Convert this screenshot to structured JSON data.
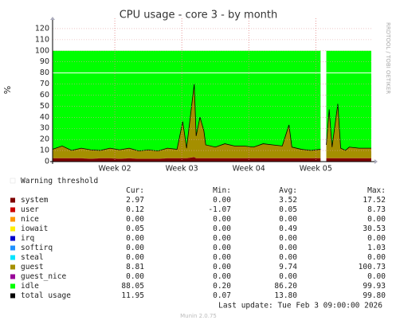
{
  "chart_data": {
    "type": "area",
    "stacked": true,
    "title": "CPU usage - core 3 - by month",
    "y_label": "%",
    "side_note": "RRDTOOL / TOBI OETIKER",
    "x": [
      0,
      1,
      2,
      3,
      4,
      5,
      6,
      7,
      8,
      9,
      10,
      11,
      12,
      13,
      13.6,
      14,
      14.8,
      15,
      15.4,
      15.8,
      16,
      17,
      18,
      19,
      20,
      21,
      22,
      23,
      24,
      24.7,
      25,
      26,
      27,
      28,
      28.3,
      28.6,
      28.9,
      29.2,
      29.8,
      30.1,
      30.6,
      31,
      32,
      33.3
    ],
    "xlim": [
      0,
      33.3
    ],
    "xticks": [
      {
        "value": 6.5,
        "label": "Week 02"
      },
      {
        "value": 13.5,
        "label": "Week 03"
      },
      {
        "value": 20.5,
        "label": "Week 04"
      },
      {
        "value": 27.5,
        "label": "Week 05"
      }
    ],
    "ylim": [
      0,
      125
    ],
    "yticks": [
      0,
      10,
      20,
      30,
      40,
      50,
      60,
      70,
      80,
      90,
      100,
      110,
      120
    ],
    "grid": true,
    "warning_threshold": {
      "name": "Warning threshold",
      "value": 80
    },
    "series": [
      {
        "name": "system",
        "color": "#7e0000",
        "values": [
          3,
          3,
          3,
          3,
          2.5,
          3,
          3,
          2.5,
          3,
          2.5,
          2.5,
          2.5,
          3,
          3,
          3,
          3,
          4,
          3,
          3,
          3,
          3,
          3,
          3,
          3,
          3,
          3,
          3,
          3,
          3,
          3,
          3,
          3,
          3,
          3,
          null,
          3,
          3,
          3,
          3,
          3,
          3,
          3,
          3,
          3
        ]
      },
      {
        "name": "user",
        "color": "#cc0000",
        "values": [
          0.1,
          0.1,
          0.1,
          0.1,
          0.1,
          0.1,
          0.1,
          0.1,
          0.1,
          0.1,
          0.1,
          0.1,
          0.1,
          0.1,
          0.1,
          0.1,
          0.1,
          0.1,
          0.1,
          0.1,
          0.1,
          0.1,
          0.1,
          0.1,
          0.1,
          0.1,
          0.1,
          0.1,
          0.1,
          0.1,
          0.1,
          0.1,
          0.1,
          0.1,
          null,
          0.1,
          0.1,
          0.1,
          0.1,
          0.1,
          0.1,
          0.1,
          0.1,
          0.1
        ]
      },
      {
        "name": "nice",
        "color": "#ff9900",
        "values": [
          0,
          0,
          0,
          0,
          0,
          0,
          0,
          0,
          0,
          0,
          0,
          0,
          0,
          0,
          0,
          0,
          0,
          0,
          0,
          0,
          0,
          0,
          0,
          0,
          0,
          0,
          0,
          0,
          0,
          0,
          0,
          0,
          0,
          0,
          null,
          0,
          0,
          0,
          0,
          0,
          0,
          0,
          0,
          0
        ]
      },
      {
        "name": "iowait",
        "color": "#ffee00",
        "values": [
          0,
          0,
          0,
          0,
          0,
          0,
          0,
          0,
          0,
          0,
          0,
          0,
          0,
          0,
          0,
          0,
          0,
          0,
          0,
          0,
          0,
          0,
          0,
          0,
          0,
          0,
          0,
          0,
          0,
          0,
          0,
          0,
          0,
          0,
          null,
          0,
          0,
          0,
          0,
          0,
          0,
          0,
          0,
          0
        ]
      },
      {
        "name": "irq",
        "color": "#0000cc",
        "values": [
          0,
          0,
          0,
          0,
          0,
          0,
          0,
          0,
          0,
          0,
          0,
          0,
          0,
          0,
          0,
          0,
          0,
          0,
          0,
          0,
          0,
          0,
          0,
          0,
          0,
          0,
          0,
          0,
          0,
          0,
          0,
          0,
          0,
          0,
          null,
          0,
          0,
          0,
          0,
          0,
          0,
          0,
          0,
          0
        ]
      },
      {
        "name": "softirq",
        "color": "#1e90ff",
        "values": [
          0,
          0,
          0,
          0,
          0,
          0,
          0,
          0,
          0,
          0,
          0,
          0,
          0,
          0,
          0,
          0,
          0,
          0,
          0,
          0,
          0,
          0,
          0,
          0,
          0,
          0,
          0,
          0,
          0,
          0,
          0,
          0,
          0,
          0,
          null,
          0,
          0,
          0,
          0,
          0,
          0,
          0,
          0,
          0
        ]
      },
      {
        "name": "steal",
        "color": "#00e5ff",
        "values": [
          0,
          0,
          0,
          0,
          0,
          0,
          0,
          0,
          0,
          0,
          0,
          0,
          0,
          0,
          0,
          0,
          0,
          0,
          0,
          0,
          0,
          0,
          0,
          0,
          0,
          0,
          0,
          0,
          0,
          0,
          0,
          0,
          0,
          0,
          null,
          0,
          0,
          0,
          0,
          0,
          0,
          0,
          0,
          0
        ]
      },
      {
        "name": "guest",
        "color": "#a58f00",
        "values": [
          8,
          11,
          7,
          9,
          8,
          7,
          9,
          8,
          9,
          7,
          8,
          7,
          9,
          8,
          33,
          9,
          66,
          20,
          37,
          25,
          12,
          10,
          13,
          11,
          11,
          10,
          13,
          12,
          11,
          30,
          10,
          8,
          7,
          8,
          null,
          12,
          44,
          10,
          49,
          9,
          7,
          10,
          9,
          9
        ]
      },
      {
        "name": "guest_nice",
        "color": "#990099",
        "values": [
          0,
          0,
          0,
          0,
          0,
          0,
          0,
          0,
          0,
          0,
          0,
          0,
          0,
          0,
          0,
          0,
          0,
          0,
          0,
          0,
          0,
          0,
          0,
          0,
          0,
          0,
          0,
          0,
          0,
          0,
          0,
          0,
          0,
          0,
          null,
          0,
          0,
          0,
          0,
          0,
          0,
          0,
          0,
          0
        ]
      },
      {
        "name": "idle",
        "color": "#00ff00",
        "values": [
          88.9,
          85.9,
          89.9,
          87.9,
          89.4,
          89.9,
          87.9,
          89.4,
          87.9,
          90.4,
          89.4,
          90.4,
          87.9,
          88.9,
          63.9,
          87.9,
          29.9,
          76.9,
          59.9,
          71.9,
          84.9,
          86.9,
          83.9,
          85.9,
          85.9,
          86.9,
          83.9,
          84.9,
          85.9,
          66.9,
          86.9,
          88.9,
          89.9,
          88.9,
          null,
          84.9,
          52.9,
          86.9,
          47.9,
          87.9,
          89.9,
          86.9,
          87.9,
          87.9
        ]
      },
      {
        "name": "total usage",
        "color": "#000000",
        "type": "line",
        "values": [
          11.1,
          14.1,
          10.1,
          12.1,
          10.6,
          10.1,
          12.1,
          10.6,
          12.1,
          9.6,
          10.6,
          9.6,
          12.1,
          11.1,
          36.1,
          12.1,
          70.1,
          23.1,
          40.1,
          28.1,
          15.1,
          13.1,
          16.1,
          14.1,
          14.1,
          13.1,
          16.1,
          15.1,
          14.1,
          33.1,
          13.1,
          11.1,
          10.1,
          11.1,
          null,
          15.1,
          47.1,
          13.1,
          52.1,
          12.1,
          10.1,
          13.1,
          12.1,
          12.1
        ]
      }
    ],
    "legend_table": {
      "headers": [
        "Cur:",
        "Min:",
        "Avg:",
        "Max:"
      ],
      "rows": [
        [
          "2.97",
          "0.00",
          "3.52",
          "17.52"
        ],
        [
          "0.12",
          "-1.07",
          "0.05",
          "8.73"
        ],
        [
          "0.00",
          "0.00",
          "0.00",
          "0.00"
        ],
        [
          "0.05",
          "0.00",
          "0.49",
          "30.53"
        ],
        [
          "0.00",
          "0.00",
          "0.00",
          "0.00"
        ],
        [
          "0.00",
          "0.00",
          "0.00",
          "1.03"
        ],
        [
          "0.00",
          "0.00",
          "0.00",
          "0.00"
        ],
        [
          "8.81",
          "0.00",
          "9.74",
          "100.73"
        ],
        [
          "0.00",
          "0.00",
          "0.00",
          "0.00"
        ],
        [
          "88.05",
          "0.20",
          "86.20",
          "99.93"
        ],
        [
          "11.95",
          "0.07",
          "13.80",
          "99.80"
        ]
      ]
    },
    "last_update": "Last update: Tue Feb  3 09:00:00 2026",
    "footer": "Munin 2.0.75"
  }
}
